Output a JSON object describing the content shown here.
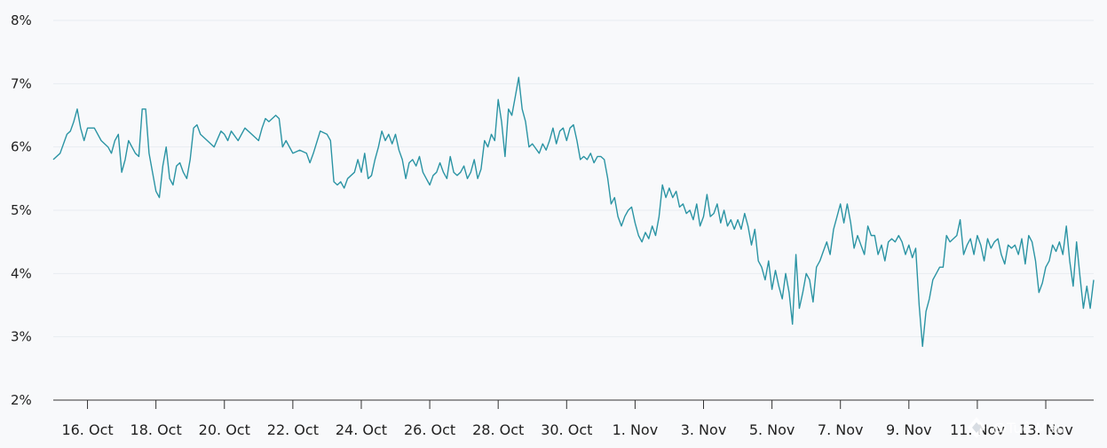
{
  "chart_data": {
    "type": "line",
    "title": "",
    "xlabel": "",
    "ylabel": "",
    "ylim": [
      2,
      8
    ],
    "yticks": [
      2,
      3,
      4,
      5,
      6,
      7,
      8
    ],
    "ytick_labels": [
      "2%",
      "3%",
      "4%",
      "5%",
      "6%",
      "7%",
      "8%"
    ],
    "xlim_day": [
      0,
      30.4
    ],
    "xticks": [
      {
        "label": "16. Oct",
        "day": 1
      },
      {
        "label": "18. Oct",
        "day": 3
      },
      {
        "label": "20. Oct",
        "day": 5
      },
      {
        "label": "22. Oct",
        "day": 7
      },
      {
        "label": "24. Oct",
        "day": 9
      },
      {
        "label": "26. Oct",
        "day": 11
      },
      {
        "label": "28. Oct",
        "day": 13
      },
      {
        "label": "30. Oct",
        "day": 15
      },
      {
        "label": "1. Nov",
        "day": 17
      },
      {
        "label": "3. Nov",
        "day": 19
      },
      {
        "label": "5. Nov",
        "day": 21
      },
      {
        "label": "7. Nov",
        "day": 23
      },
      {
        "label": "9. Nov",
        "day": 25
      },
      {
        "label": "11. Nov",
        "day": 27
      },
      {
        "label": "13. Nov",
        "day": 29
      }
    ],
    "grid": true,
    "legend": "none",
    "series": [
      {
        "color": "#2b94a4",
        "points": [
          [
            0,
            5.8
          ],
          [
            0.2,
            5.9
          ],
          [
            0.4,
            6.2
          ],
          [
            0.5,
            6.25
          ],
          [
            0.6,
            6.4
          ],
          [
            0.7,
            6.6
          ],
          [
            0.8,
            6.3
          ],
          [
            0.9,
            6.1
          ],
          [
            1.0,
            6.3
          ],
          [
            1.2,
            6.3
          ],
          [
            1.4,
            6.1
          ],
          [
            1.6,
            6.0
          ],
          [
            1.7,
            5.9
          ],
          [
            1.8,
            6.1
          ],
          [
            1.9,
            6.2
          ],
          [
            2.0,
            5.6
          ],
          [
            2.1,
            5.8
          ],
          [
            2.2,
            6.1
          ],
          [
            2.4,
            5.9
          ],
          [
            2.5,
            5.85
          ],
          [
            2.6,
            6.6
          ],
          [
            2.7,
            6.6
          ],
          [
            2.8,
            5.9
          ],
          [
            2.9,
            5.6
          ],
          [
            3.0,
            5.3
          ],
          [
            3.1,
            5.2
          ],
          [
            3.2,
            5.7
          ],
          [
            3.3,
            6.0
          ],
          [
            3.4,
            5.5
          ],
          [
            3.5,
            5.4
          ],
          [
            3.6,
            5.7
          ],
          [
            3.7,
            5.75
          ],
          [
            3.8,
            5.6
          ],
          [
            3.9,
            5.5
          ],
          [
            4.0,
            5.8
          ],
          [
            4.1,
            6.3
          ],
          [
            4.2,
            6.35
          ],
          [
            4.3,
            6.2
          ],
          [
            4.5,
            6.1
          ],
          [
            4.7,
            6.0
          ],
          [
            4.9,
            6.25
          ],
          [
            5.0,
            6.2
          ],
          [
            5.1,
            6.1
          ],
          [
            5.2,
            6.25
          ],
          [
            5.4,
            6.1
          ],
          [
            5.6,
            6.3
          ],
          [
            5.8,
            6.2
          ],
          [
            6.0,
            6.1
          ],
          [
            6.1,
            6.3
          ],
          [
            6.2,
            6.45
          ],
          [
            6.3,
            6.4
          ],
          [
            6.5,
            6.5
          ],
          [
            6.6,
            6.45
          ],
          [
            6.7,
            6.0
          ],
          [
            6.8,
            6.1
          ],
          [
            7.0,
            5.9
          ],
          [
            7.2,
            5.95
          ],
          [
            7.4,
            5.9
          ],
          [
            7.5,
            5.75
          ],
          [
            7.6,
            5.9
          ],
          [
            7.8,
            6.25
          ],
          [
            8.0,
            6.2
          ],
          [
            8.1,
            6.1
          ],
          [
            8.2,
            5.45
          ],
          [
            8.3,
            5.4
          ],
          [
            8.4,
            5.45
          ],
          [
            8.5,
            5.35
          ],
          [
            8.6,
            5.5
          ],
          [
            8.8,
            5.6
          ],
          [
            8.9,
            5.8
          ],
          [
            9.0,
            5.6
          ],
          [
            9.1,
            5.9
          ],
          [
            9.2,
            5.5
          ],
          [
            9.3,
            5.55
          ],
          [
            9.4,
            5.8
          ],
          [
            9.5,
            6.0
          ],
          [
            9.6,
            6.25
          ],
          [
            9.7,
            6.1
          ],
          [
            9.8,
            6.2
          ],
          [
            9.9,
            6.05
          ],
          [
            10.0,
            6.2
          ],
          [
            10.1,
            5.95
          ],
          [
            10.2,
            5.8
          ],
          [
            10.3,
            5.5
          ],
          [
            10.4,
            5.75
          ],
          [
            10.5,
            5.8
          ],
          [
            10.6,
            5.7
          ],
          [
            10.7,
            5.85
          ],
          [
            10.8,
            5.6
          ],
          [
            10.9,
            5.5
          ],
          [
            11.0,
            5.4
          ],
          [
            11.1,
            5.55
          ],
          [
            11.2,
            5.6
          ],
          [
            11.3,
            5.75
          ],
          [
            11.4,
            5.6
          ],
          [
            11.5,
            5.5
          ],
          [
            11.6,
            5.85
          ],
          [
            11.7,
            5.6
          ],
          [
            11.8,
            5.55
          ],
          [
            11.9,
            5.6
          ],
          [
            12.0,
            5.7
          ],
          [
            12.1,
            5.5
          ],
          [
            12.2,
            5.6
          ],
          [
            12.3,
            5.8
          ],
          [
            12.4,
            5.5
          ],
          [
            12.5,
            5.65
          ],
          [
            12.6,
            6.1
          ],
          [
            12.7,
            6.0
          ],
          [
            12.8,
            6.2
          ],
          [
            12.9,
            6.1
          ],
          [
            13.0,
            6.75
          ],
          [
            13.1,
            6.4
          ],
          [
            13.2,
            5.85
          ],
          [
            13.3,
            6.6
          ],
          [
            13.4,
            6.5
          ],
          [
            13.5,
            6.8
          ],
          [
            13.6,
            7.1
          ],
          [
            13.7,
            6.6
          ],
          [
            13.8,
            6.4
          ],
          [
            13.9,
            6.0
          ],
          [
            14.0,
            6.05
          ],
          [
            14.2,
            5.9
          ],
          [
            14.3,
            6.05
          ],
          [
            14.4,
            5.95
          ],
          [
            14.5,
            6.1
          ],
          [
            14.6,
            6.3
          ],
          [
            14.7,
            6.05
          ],
          [
            14.8,
            6.25
          ],
          [
            14.9,
            6.3
          ],
          [
            15.0,
            6.1
          ],
          [
            15.1,
            6.3
          ],
          [
            15.2,
            6.35
          ],
          [
            15.3,
            6.1
          ],
          [
            15.4,
            5.8
          ],
          [
            15.5,
            5.85
          ],
          [
            15.6,
            5.8
          ],
          [
            15.7,
            5.9
          ],
          [
            15.8,
            5.75
          ],
          [
            15.9,
            5.85
          ],
          [
            16.0,
            5.85
          ],
          [
            16.1,
            5.8
          ],
          [
            16.2,
            5.5
          ],
          [
            16.3,
            5.1
          ],
          [
            16.4,
            5.2
          ],
          [
            16.5,
            4.9
          ],
          [
            16.6,
            4.75
          ],
          [
            16.7,
            4.9
          ],
          [
            16.8,
            5.0
          ],
          [
            16.9,
            5.05
          ],
          [
            17.0,
            4.8
          ],
          [
            17.1,
            4.6
          ],
          [
            17.2,
            4.5
          ],
          [
            17.3,
            4.65
          ],
          [
            17.4,
            4.55
          ],
          [
            17.5,
            4.75
          ],
          [
            17.6,
            4.6
          ],
          [
            17.7,
            4.9
          ],
          [
            17.8,
            5.4
          ],
          [
            17.9,
            5.2
          ],
          [
            18.0,
            5.35
          ],
          [
            18.1,
            5.2
          ],
          [
            18.2,
            5.3
          ],
          [
            18.3,
            5.05
          ],
          [
            18.4,
            5.1
          ],
          [
            18.5,
            4.95
          ],
          [
            18.6,
            5.0
          ],
          [
            18.7,
            4.85
          ],
          [
            18.8,
            5.1
          ],
          [
            18.9,
            4.75
          ],
          [
            19.0,
            4.9
          ],
          [
            19.1,
            5.25
          ],
          [
            19.2,
            4.9
          ],
          [
            19.3,
            4.95
          ],
          [
            19.4,
            5.1
          ],
          [
            19.5,
            4.8
          ],
          [
            19.6,
            5.0
          ],
          [
            19.7,
            4.75
          ],
          [
            19.8,
            4.85
          ],
          [
            19.9,
            4.7
          ],
          [
            20.0,
            4.85
          ],
          [
            20.1,
            4.7
          ],
          [
            20.2,
            4.95
          ],
          [
            20.3,
            4.75
          ],
          [
            20.4,
            4.45
          ],
          [
            20.5,
            4.7
          ],
          [
            20.6,
            4.2
          ],
          [
            20.7,
            4.1
          ],
          [
            20.8,
            3.9
          ],
          [
            20.9,
            4.2
          ],
          [
            21.0,
            3.75
          ],
          [
            21.1,
            4.05
          ],
          [
            21.2,
            3.8
          ],
          [
            21.3,
            3.6
          ],
          [
            21.4,
            4.0
          ],
          [
            21.5,
            3.7
          ],
          [
            21.6,
            3.2
          ],
          [
            21.7,
            4.3
          ],
          [
            21.8,
            3.45
          ],
          [
            21.9,
            3.7
          ],
          [
            22.0,
            4.0
          ],
          [
            22.1,
            3.9
          ],
          [
            22.2,
            3.55
          ],
          [
            22.3,
            4.1
          ],
          [
            22.4,
            4.2
          ],
          [
            22.5,
            4.35
          ],
          [
            22.6,
            4.5
          ],
          [
            22.7,
            4.3
          ],
          [
            22.8,
            4.7
          ],
          [
            22.9,
            4.9
          ],
          [
            23.0,
            5.1
          ],
          [
            23.1,
            4.8
          ],
          [
            23.2,
            5.1
          ],
          [
            23.3,
            4.8
          ],
          [
            23.4,
            4.4
          ],
          [
            23.5,
            4.6
          ],
          [
            23.6,
            4.45
          ],
          [
            23.7,
            4.3
          ],
          [
            23.8,
            4.75
          ],
          [
            23.9,
            4.6
          ],
          [
            24.0,
            4.6
          ],
          [
            24.1,
            4.3
          ],
          [
            24.2,
            4.45
          ],
          [
            24.3,
            4.2
          ],
          [
            24.4,
            4.5
          ],
          [
            24.5,
            4.55
          ],
          [
            24.6,
            4.5
          ],
          [
            24.7,
            4.6
          ],
          [
            24.8,
            4.5
          ],
          [
            24.9,
            4.3
          ],
          [
            25.0,
            4.45
          ],
          [
            25.1,
            4.25
          ],
          [
            25.2,
            4.4
          ],
          [
            25.3,
            3.5
          ],
          [
            25.4,
            2.85
          ],
          [
            25.5,
            3.4
          ],
          [
            25.6,
            3.6
          ],
          [
            25.7,
            3.9
          ],
          [
            25.8,
            4.0
          ],
          [
            25.9,
            4.1
          ],
          [
            26.0,
            4.1
          ],
          [
            26.1,
            4.6
          ],
          [
            26.2,
            4.5
          ],
          [
            26.3,
            4.55
          ],
          [
            26.4,
            4.6
          ],
          [
            26.5,
            4.85
          ],
          [
            26.6,
            4.3
          ],
          [
            26.7,
            4.45
          ],
          [
            26.8,
            4.55
          ],
          [
            26.9,
            4.3
          ],
          [
            27.0,
            4.6
          ],
          [
            27.1,
            4.45
          ],
          [
            27.2,
            4.2
          ],
          [
            27.3,
            4.55
          ],
          [
            27.4,
            4.4
          ],
          [
            27.5,
            4.5
          ],
          [
            27.6,
            4.55
          ],
          [
            27.7,
            4.3
          ],
          [
            27.8,
            4.15
          ],
          [
            27.9,
            4.45
          ],
          [
            28.0,
            4.4
          ],
          [
            28.1,
            4.45
          ],
          [
            28.2,
            4.3
          ],
          [
            28.3,
            4.55
          ],
          [
            28.4,
            4.15
          ],
          [
            28.5,
            4.6
          ],
          [
            28.6,
            4.5
          ],
          [
            28.7,
            4.2
          ],
          [
            28.8,
            3.7
          ],
          [
            28.9,
            3.85
          ],
          [
            29.0,
            4.1
          ],
          [
            29.1,
            4.2
          ],
          [
            29.2,
            4.45
          ],
          [
            29.3,
            4.35
          ],
          [
            29.4,
            4.5
          ],
          [
            29.5,
            4.3
          ],
          [
            29.6,
            4.75
          ],
          [
            29.7,
            4.2
          ],
          [
            29.8,
            3.8
          ],
          [
            29.9,
            4.5
          ],
          [
            30.0,
            3.95
          ],
          [
            30.1,
            3.45
          ],
          [
            30.2,
            3.8
          ],
          [
            30.3,
            3.45
          ],
          [
            30.4,
            3.9
          ]
        ]
      }
    ]
  },
  "watermark": {
    "text": "@Tuệ Mẫn"
  }
}
